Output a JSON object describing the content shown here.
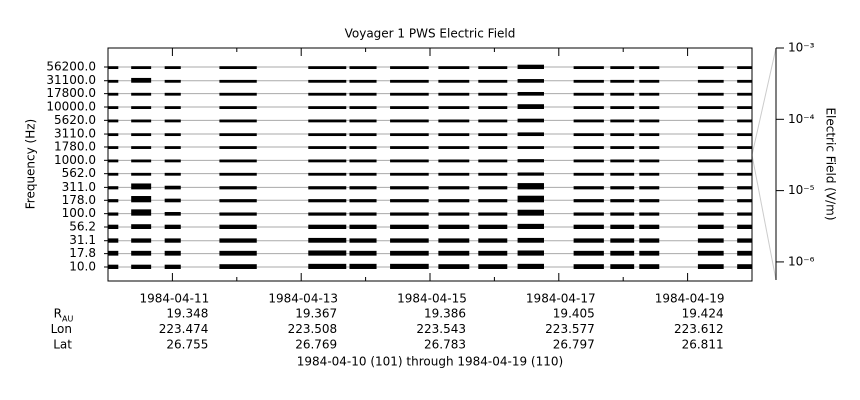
{
  "chart_data": {
    "type": "spectrogram",
    "title": "Voyager 1 PWS Electric Field",
    "ylabel": "Frequency (Hz)",
    "y2label": "Electric Field (V/m)",
    "footer": "1984-04-10 (101) through 1984-04-19 (110)",
    "ylog": true,
    "y2log": true,
    "grid": true,
    "color": "#000000",
    "xlim": [
      101,
      111
    ],
    "xticks": [
      {
        "value": 102,
        "label": "1984-04-11"
      },
      {
        "value": 104,
        "label": "1984-04-13"
      },
      {
        "value": 106,
        "label": "1984-04-15"
      },
      {
        "value": 108,
        "label": "1984-04-17"
      },
      {
        "value": 110,
        "label": "1984-04-19"
      }
    ],
    "xminorticks": [
      101,
      103,
      105,
      107,
      109,
      111
    ],
    "ylim": [
      5.46,
      127700
    ],
    "yticks": [
      {
        "value": 56200,
        "label": "56200.0"
      },
      {
        "value": 31100,
        "label": "31100.0"
      },
      {
        "value": 17800,
        "label": "17800.0"
      },
      {
        "value": 10000,
        "label": "10000.0"
      },
      {
        "value": 5620,
        "label": "5620.0"
      },
      {
        "value": 3110,
        "label": "3110.0"
      },
      {
        "value": 1780,
        "label": "1780.0"
      },
      {
        "value": 1000,
        "label": "1000.0"
      },
      {
        "value": 562,
        "label": "562.0"
      },
      {
        "value": 311,
        "label": "311.0"
      },
      {
        "value": 178,
        "label": "178.0"
      },
      {
        "value": 100,
        "label": "100.0"
      },
      {
        "value": 56.2,
        "label": "56.2"
      },
      {
        "value": 31.1,
        "label": "31.1"
      },
      {
        "value": 17.8,
        "label": "17.8"
      },
      {
        "value": 10,
        "label": "10.0"
      }
    ],
    "y2lim": [
      5.4e-07,
      0.001
    ],
    "y2ticks": [
      {
        "value": 0.001,
        "label": "10⁻³"
      },
      {
        "value": 0.0001,
        "label": "10⁻⁴"
      },
      {
        "value": 1e-05,
        "label": "10⁻⁵"
      },
      {
        "value": 1e-06,
        "label": "10⁻⁶"
      }
    ],
    "segments": [
      [
        101.0,
        101.16
      ],
      [
        101.36,
        101.67
      ],
      [
        101.88,
        102.13
      ],
      [
        102.73,
        103.31
      ],
      [
        104.11,
        104.7
      ],
      [
        104.75,
        105.17
      ],
      [
        105.38,
        105.98
      ],
      [
        106.13,
        106.61
      ],
      [
        106.75,
        107.2
      ],
      [
        107.36,
        107.77
      ],
      [
        108.23,
        108.7
      ],
      [
        108.8,
        109.17
      ],
      [
        109.25,
        109.56
      ],
      [
        110.16,
        110.56
      ],
      [
        110.77,
        111.0
      ]
    ],
    "series": [
      {
        "values": [
          1.2e-06,
          1.2e-06,
          1.2e-06,
          1.2e-06,
          1.2e-06,
          1.2e-06,
          1.2e-06,
          1.2e-06,
          1.2e-06,
          3e-06,
          1.2e-06,
          1.2e-06,
          1.2e-06,
          1.2e-06,
          1.2e-06
        ]
      },
      {
        "values": [
          1.2e-06,
          4e-06,
          1.2e-06,
          1.2e-06,
          1.2e-06,
          1.2e-06,
          1.2e-06,
          1.2e-06,
          1.2e-06,
          2e-06,
          1.2e-06,
          1.2e-06,
          1.2e-06,
          1.2e-06,
          1.2e-06
        ]
      },
      {
        "values": [
          1.2e-06,
          1.2e-06,
          1.2e-06,
          1.2e-06,
          1.2e-06,
          1.2e-06,
          1.2e-06,
          1.2e-06,
          1.2e-06,
          2e-06,
          1.2e-06,
          1.2e-06,
          1.2e-06,
          1.2e-06,
          1.2e-06
        ]
      },
      {
        "values": [
          1.2e-06,
          1.2e-06,
          1.2e-06,
          1.2e-06,
          1.2e-06,
          1.2e-06,
          1.2e-06,
          1.2e-06,
          1.2e-06,
          4e-06,
          1.2e-06,
          1.2e-06,
          1.2e-06,
          1.2e-06,
          1.2e-06
        ]
      },
      {
        "values": [
          1.2e-06,
          1.2e-06,
          1.2e-06,
          1.2e-06,
          1.2e-06,
          1.2e-06,
          1.2e-06,
          1.2e-06,
          1.2e-06,
          2e-06,
          1.2e-06,
          1.2e-06,
          1.2e-06,
          1.2e-06,
          1.2e-06
        ]
      },
      {
        "values": [
          1.2e-06,
          1.2e-06,
          1.2e-06,
          1.2e-06,
          1.2e-06,
          1.2e-06,
          1.2e-06,
          1.2e-06,
          1.2e-06,
          2e-06,
          1.2e-06,
          1.2e-06,
          1.2e-06,
          1.2e-06,
          1.2e-06
        ]
      },
      {
        "values": [
          1.2e-06,
          1.2e-06,
          1.2e-06,
          1.2e-06,
          1.2e-06,
          1.2e-06,
          1.2e-06,
          1.2e-06,
          1.2e-06,
          1.2e-06,
          1.2e-06,
          1.2e-06,
          1.2e-06,
          1.2e-06,
          1.2e-06
        ]
      },
      {
        "values": [
          1.2e-06,
          1.2e-06,
          1.2e-06,
          1.2e-06,
          1.2e-06,
          1.2e-06,
          1.2e-06,
          1.2e-06,
          1.2e-06,
          1.5e-06,
          1.2e-06,
          1.2e-06,
          1.2e-06,
          1.2e-06,
          1.2e-06
        ]
      },
      {
        "values": [
          1.2e-06,
          1.2e-06,
          1.2e-06,
          1.2e-06,
          1.2e-06,
          1.2e-06,
          1.2e-06,
          1.2e-06,
          1.2e-06,
          1.5e-06,
          1.2e-06,
          1.2e-06,
          1.2e-06,
          1.2e-06,
          1.2e-06
        ]
      },
      {
        "values": [
          1.5e-06,
          8e-06,
          2e-06,
          1.5e-06,
          1.5e-06,
          1.5e-06,
          1.5e-06,
          1.5e-06,
          1.5e-06,
          1e-05,
          1.5e-06,
          1.5e-06,
          1.5e-06,
          1.5e-06,
          1.5e-06
        ]
      },
      {
        "values": [
          1.5e-06,
          1e-05,
          2e-06,
          1.5e-06,
          1.5e-06,
          1.5e-06,
          1.5e-06,
          1.5e-06,
          1.5e-06,
          1.2e-05,
          1.5e-06,
          1.5e-06,
          1.5e-06,
          1.5e-06,
          1.5e-06
        ]
      },
      {
        "values": [
          1.5e-06,
          1e-05,
          2e-06,
          1.5e-06,
          1.5e-06,
          1.5e-06,
          1.5e-06,
          1.5e-06,
          1.5e-06,
          8e-06,
          1.5e-06,
          1.5e-06,
          1.5e-06,
          1.5e-06,
          1.5e-06
        ]
      },
      {
        "values": [
          3e-06,
          4e-06,
          3e-06,
          3e-06,
          3e-06,
          3e-06,
          3e-06,
          3e-06,
          3e-06,
          5e-06,
          3e-06,
          3e-06,
          3e-06,
          3e-06,
          3e-06
        ]
      },
      {
        "values": [
          3e-06,
          3e-06,
          3e-06,
          3e-06,
          4e-06,
          3e-06,
          3e-06,
          3e-06,
          3e-06,
          4e-06,
          3e-06,
          3e-06,
          3e-06,
          3e-06,
          3e-06
        ]
      },
      {
        "values": [
          4e-06,
          4e-06,
          4e-06,
          4e-06,
          5e-06,
          4e-06,
          4e-06,
          4e-06,
          4e-06,
          5e-06,
          4e-06,
          4e-06,
          4e-06,
          4e-06,
          4e-06
        ]
      },
      {
        "values": [
          3e-06,
          3e-06,
          3e-06,
          4e-06,
          5e-06,
          5e-06,
          5e-06,
          4e-06,
          4e-06,
          5e-06,
          4e-06,
          4e-06,
          4e-06,
          4e-06,
          4e-06
        ]
      }
    ],
    "ephemeris": [
      {
        "name": "R",
        "subscript": "AU",
        "values": [
          19.348,
          19.367,
          19.386,
          19.405,
          19.424
        ]
      },
      {
        "name": "Lon",
        "values": [
          223.474,
          223.508,
          223.543,
          223.577,
          223.612
        ]
      },
      {
        "name": "Lat",
        "values": [
          26.755,
          26.769,
          26.783,
          26.797,
          26.811
        ]
      }
    ]
  }
}
